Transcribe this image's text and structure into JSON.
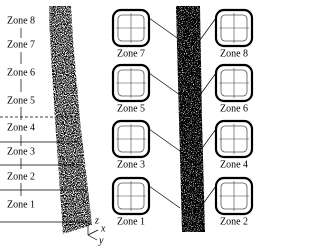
{
  "left_labels": [
    "Zone 8",
    "Zone 7",
    "Zone 6",
    "Zone 5",
    "Zone 4",
    "Zone 3",
    "Zone 2",
    "Zone 1"
  ],
  "panel_labels": [
    "Zone 7",
    "Zone 8",
    "Zone 5",
    "Zone 6",
    "Zone 3",
    "Zone 4",
    "Zone 1",
    "Zone 2"
  ],
  "axis_labels": {
    "z": "z",
    "x": "x",
    "y": "y"
  }
}
